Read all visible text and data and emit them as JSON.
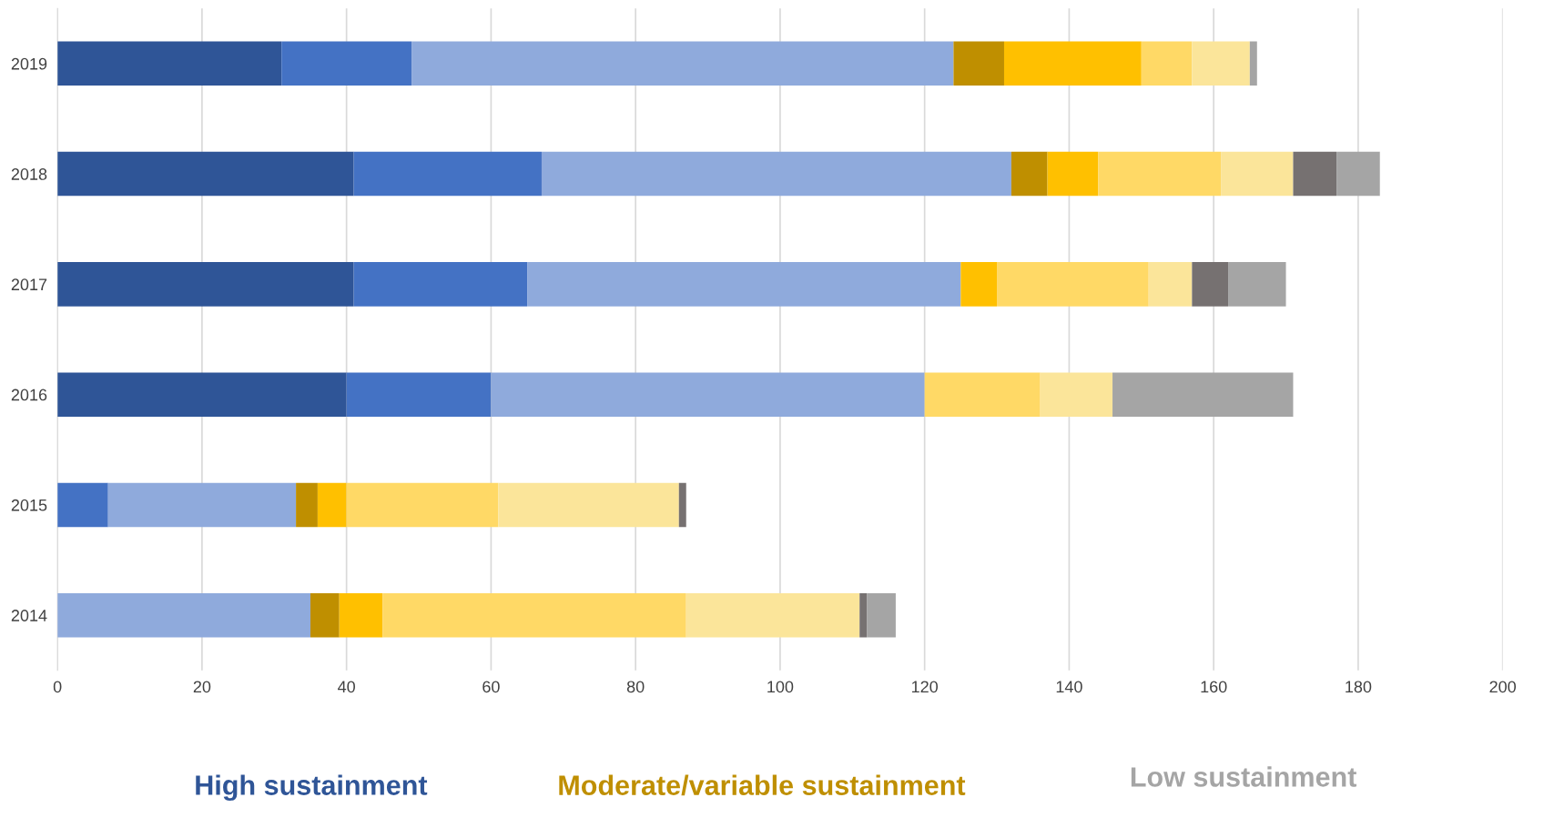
{
  "chart_data": {
    "type": "bar",
    "orientation": "horizontal",
    "stacked": true,
    "categories": [
      "2019",
      "2018",
      "2017",
      "2016",
      "2015",
      "2014"
    ],
    "series": [
      {
        "color": "#2f5597",
        "values": [
          31,
          41,
          41,
          40,
          0,
          0
        ]
      },
      {
        "color": "#4472c4",
        "values": [
          18,
          26,
          24,
          20,
          7,
          0
        ]
      },
      {
        "color": "#8faadc",
        "values": [
          75,
          65,
          60,
          60,
          26,
          35
        ]
      },
      {
        "color": "#bf8f00",
        "values": [
          7,
          5,
          0,
          0,
          3,
          4
        ]
      },
      {
        "color": "#ffc000",
        "values": [
          19,
          7,
          5,
          0,
          4,
          6
        ]
      },
      {
        "color": "#ffd966",
        "values": [
          7,
          17,
          21,
          16,
          21,
          42
        ]
      },
      {
        "color": "#fbe59a",
        "values": [
          8,
          10,
          6,
          10,
          25,
          24
        ]
      },
      {
        "color": "#767171",
        "values": [
          0,
          6,
          5,
          0,
          1,
          1
        ]
      },
      {
        "color": "#a5a5a5",
        "values": [
          1,
          6,
          8,
          25,
          0,
          4
        ]
      }
    ],
    "xlim": [
      0,
      200
    ],
    "xticks": [
      0,
      20,
      40,
      60,
      80,
      100,
      120,
      140,
      160,
      180,
      200
    ],
    "grid": "x",
    "legend": false,
    "annotations": [
      "High sustainment",
      "Moderate/variable sustainment",
      "Low sustainment"
    ]
  }
}
